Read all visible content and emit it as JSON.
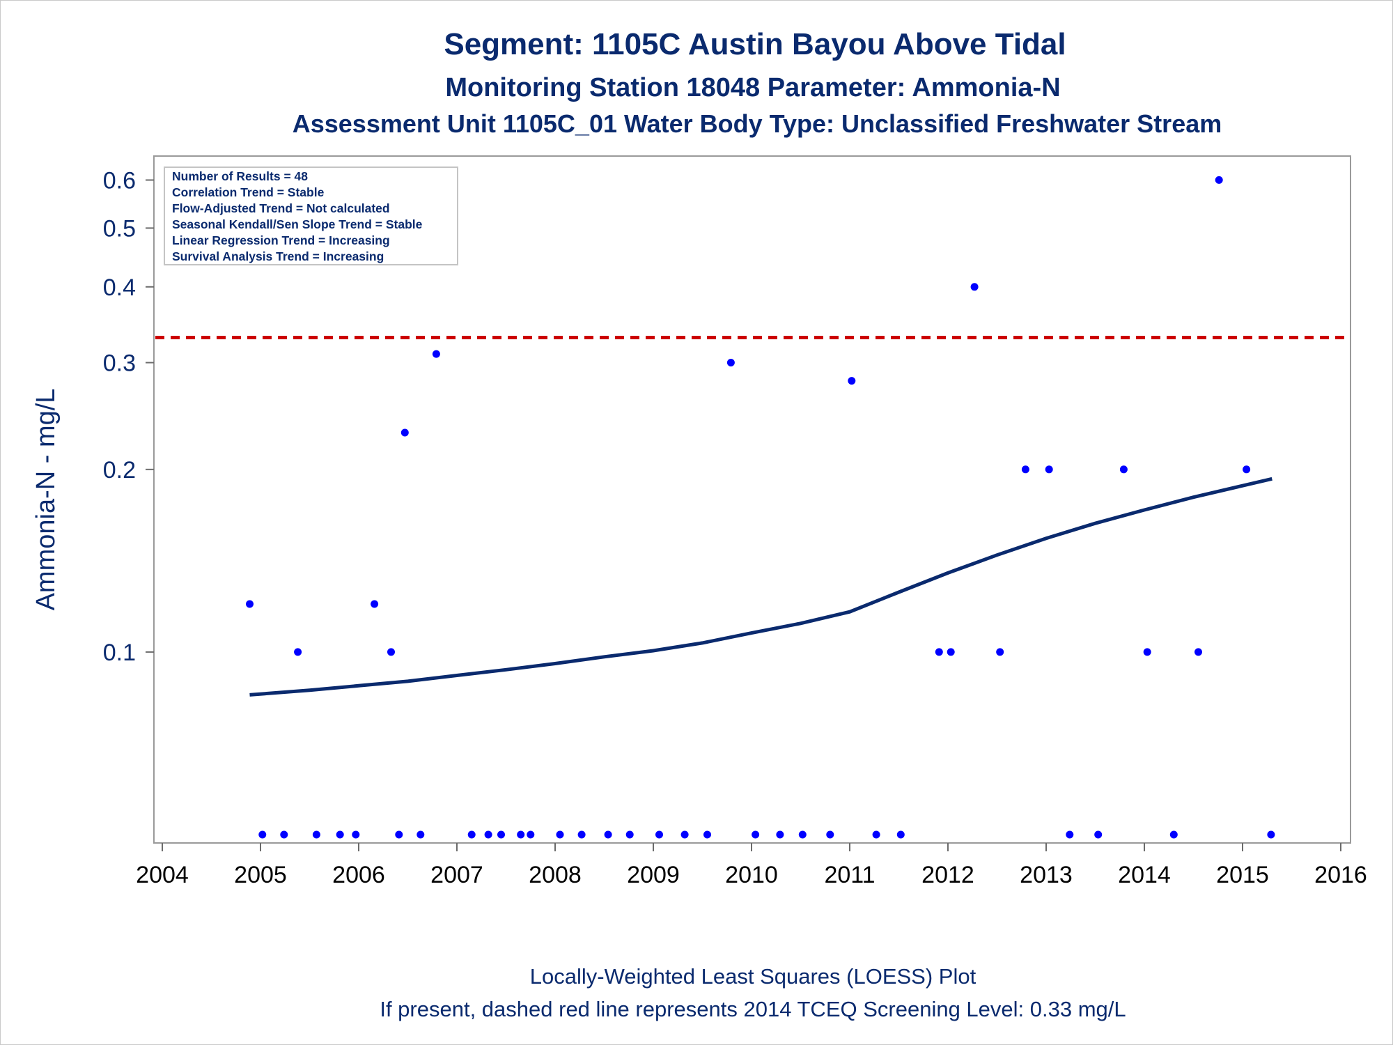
{
  "chart_data": {
    "type": "scatter",
    "title": "Segment: 1105C  Austin Bayou Above Tidal",
    "subtitle_1": "Monitoring Station 18048 Parameter: Ammonia-N",
    "subtitle_2": "Assessment Unit 1105C_01   Water Body Type: Unclassified Freshwater Stream",
    "xlabel": "",
    "ylabel": "Ammonia-N - mg/L",
    "y_scale": "log",
    "xlim": [
      2004,
      2016
    ],
    "ylim": [
      0.05,
      0.63
    ],
    "x_ticks": [
      2004,
      2005,
      2006,
      2007,
      2008,
      2009,
      2010,
      2011,
      2012,
      2013,
      2014,
      2015,
      2016
    ],
    "y_ticks": [
      0.1,
      0.2,
      0.3,
      0.4,
      0.5,
      0.6
    ],
    "y_tick_labels": [
      "0.1",
      "0.2",
      "0.3",
      "0.4",
      "0.5",
      "0.6"
    ],
    "stats_box": {
      "placement": "top-left",
      "lines": [
        "Number of Results = 48",
        "Correlation Trend = Stable",
        "Flow-Adjusted Trend = Not calculated",
        "Seasonal Kendall/Sen Slope Trend = Stable",
        "Linear Regression Trend = Increasing",
        "Survival Analysis Trend = Increasing"
      ]
    },
    "screening_level": {
      "value": 0.33,
      "style": "dashed",
      "color": "#cc0000"
    },
    "series": [
      {
        "type": "scatter",
        "color": "#0000ff",
        "points": [
          [
            2004.89,
            0.12
          ],
          [
            2005.38,
            0.1
          ],
          [
            2006.16,
            0.12
          ],
          [
            2006.33,
            0.1
          ],
          [
            2006.47,
            0.23
          ],
          [
            2006.79,
            0.31
          ],
          [
            2009.79,
            0.3
          ],
          [
            2011.02,
            0.28
          ],
          [
            2011.91,
            0.1
          ],
          [
            2012.03,
            0.1
          ],
          [
            2012.27,
            0.4
          ],
          [
            2012.53,
            0.1
          ],
          [
            2012.79,
            0.2
          ],
          [
            2013.03,
            0.2
          ],
          [
            2013.79,
            0.2
          ],
          [
            2014.03,
            0.1
          ],
          [
            2014.55,
            0.1
          ],
          [
            2014.76,
            0.6
          ],
          [
            2015.04,
            0.2
          ],
          [
            2005.02,
            0.05
          ],
          [
            2005.24,
            0.05
          ],
          [
            2005.57,
            0.05
          ],
          [
            2005.81,
            0.05
          ],
          [
            2005.97,
            0.05
          ],
          [
            2006.41,
            0.05
          ],
          [
            2006.63,
            0.05
          ],
          [
            2007.15,
            0.05
          ],
          [
            2007.32,
            0.05
          ],
          [
            2007.45,
            0.05
          ],
          [
            2007.65,
            0.05
          ],
          [
            2007.75,
            0.05
          ],
          [
            2008.05,
            0.05
          ],
          [
            2008.27,
            0.05
          ],
          [
            2008.54,
            0.05
          ],
          [
            2008.76,
            0.05
          ],
          [
            2009.06,
            0.05
          ],
          [
            2009.32,
            0.05
          ],
          [
            2009.55,
            0.05
          ],
          [
            2010.04,
            0.05
          ],
          [
            2010.29,
            0.05
          ],
          [
            2010.52,
            0.05
          ],
          [
            2010.8,
            0.05
          ],
          [
            2011.27,
            0.05
          ],
          [
            2011.52,
            0.05
          ],
          [
            2013.24,
            0.05
          ],
          [
            2013.53,
            0.05
          ],
          [
            2014.3,
            0.05
          ],
          [
            2015.29,
            0.05
          ]
        ]
      },
      {
        "type": "line",
        "name": "LOESS",
        "color": "#0a2a6e",
        "points": [
          [
            2004.89,
            0.085
          ],
          [
            2005.5,
            0.0865
          ],
          [
            2006.0,
            0.088
          ],
          [
            2006.5,
            0.0895
          ],
          [
            2007.0,
            0.0915
          ],
          [
            2007.5,
            0.0935
          ],
          [
            2008.0,
            0.0957
          ],
          [
            2008.5,
            0.0982
          ],
          [
            2009.0,
            0.1005
          ],
          [
            2009.5,
            0.1035
          ],
          [
            2010.0,
            0.1075
          ],
          [
            2010.5,
            0.1115
          ],
          [
            2011.0,
            0.1165
          ],
          [
            2011.5,
            0.1255
          ],
          [
            2012.0,
            0.135
          ],
          [
            2012.5,
            0.1445
          ],
          [
            2013.0,
            0.154
          ],
          [
            2013.5,
            0.163
          ],
          [
            2014.0,
            0.1715
          ],
          [
            2014.5,
            0.18
          ],
          [
            2015.0,
            0.188
          ],
          [
            2015.3,
            0.193
          ]
        ]
      }
    ],
    "footnote_1": "Locally-Weighted Least Squares (LOESS) Plot",
    "footnote_2": "If present, dashed red line represents 2014 TCEQ Screening Level: 0.33 mg/L"
  }
}
